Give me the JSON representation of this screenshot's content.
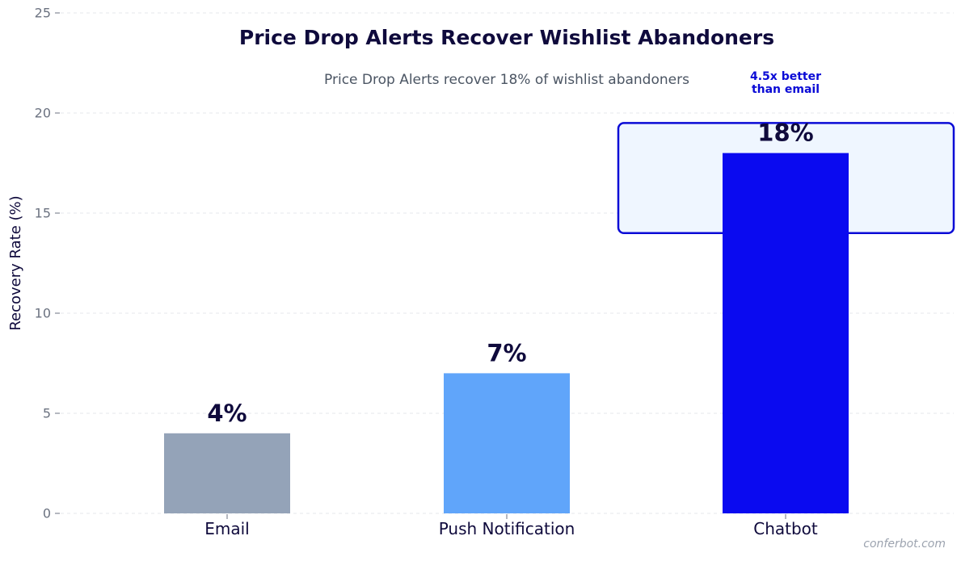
{
  "chart_data": {
    "type": "bar",
    "title": "Price Drop Alerts Recover Wishlist Abandoners",
    "subtitle": "Price Drop Alerts recover 18% of wishlist abandoners",
    "xlabel": "",
    "ylabel": "Recovery Rate (%)",
    "categories": [
      "Email",
      "Push Notification",
      "Chatbot"
    ],
    "values": [
      4,
      7,
      18
    ],
    "value_labels": [
      "4%",
      "7%",
      "18%"
    ],
    "ylim": [
      0,
      25
    ],
    "yticks": [
      0,
      5,
      10,
      15,
      20,
      25
    ],
    "grid": "horizontal dashed",
    "colors": [
      "#94a3b8",
      "#60a5fa",
      "#0a0af0"
    ],
    "highlight": {
      "category": "Chatbot",
      "y_range": [
        14,
        19.5
      ],
      "fill": "#eff6ff",
      "stroke": "#0a0ad6"
    },
    "annotation": {
      "lines": [
        "4.5x better",
        "than email"
      ],
      "category": "Chatbot",
      "color": "#0a0ad6"
    },
    "watermark": "conferbot.com"
  }
}
